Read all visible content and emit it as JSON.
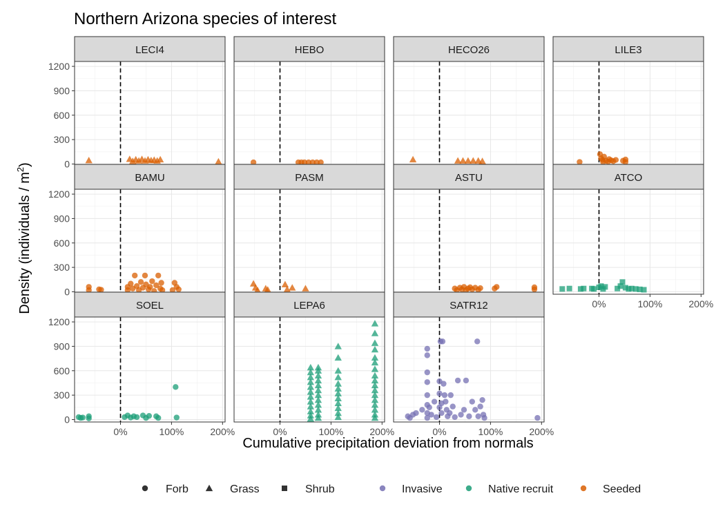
{
  "chart_data": {
    "type": "scatter",
    "title": "Northern Arizona species of interest",
    "xlabel": "Cumulative precipitation deviation from normals",
    "ylabel": "Density (individuals / m",
    "ylabel_sup": "2",
    "ylabel_close": ")",
    "xlim": [
      -0.9,
      2.05
    ],
    "ylim": [
      -30,
      1260
    ],
    "x_ticks": [
      0,
      1,
      2
    ],
    "x_tick_labels": [
      "0%",
      "100%",
      "200%"
    ],
    "y_ticks": [
      0,
      300,
      600,
      900,
      1200
    ],
    "y_tick_labels": [
      "0",
      "300",
      "600",
      "900",
      "1200"
    ],
    "vline_x": 0,
    "grid": true,
    "facet_layout": {
      "rows": 3,
      "cols": 4
    },
    "colors": {
      "Invasive": "#7570b3",
      "Native recruit": "#1b9e77",
      "Seeded": "#d95f02"
    },
    "legend": {
      "position": "bottom",
      "shape_items": [
        {
          "label": "Forb",
          "shape": "circle"
        },
        {
          "label": "Grass",
          "shape": "triangle"
        },
        {
          "label": "Shrub",
          "shape": "square"
        }
      ],
      "color_items": [
        {
          "label": "Invasive",
          "color": "#7570b3"
        },
        {
          "label": "Native recruit",
          "color": "#1b9e77"
        },
        {
          "label": "Seeded",
          "color": "#d95f02"
        }
      ]
    },
    "panels": [
      {
        "name": "LECI4",
        "group": "Seeded",
        "shape": "triangle",
        "points": [
          [
            -0.62,
            45
          ],
          [
            0.18,
            60
          ],
          [
            0.24,
            35
          ],
          [
            0.3,
            55
          ],
          [
            0.36,
            40
          ],
          [
            0.42,
            60
          ],
          [
            0.48,
            40
          ],
          [
            0.54,
            55
          ],
          [
            0.6,
            45
          ],
          [
            0.66,
            50
          ],
          [
            0.72,
            40
          ],
          [
            0.78,
            55
          ],
          [
            1.92,
            30
          ]
        ]
      },
      {
        "name": "HEBO",
        "group": "Seeded",
        "shape": "circle",
        "points": [
          [
            -0.52,
            20
          ],
          [
            0.36,
            20
          ],
          [
            0.42,
            20
          ],
          [
            0.48,
            20
          ],
          [
            0.56,
            20
          ],
          [
            0.64,
            20
          ],
          [
            0.72,
            20
          ],
          [
            0.8,
            20
          ]
        ]
      },
      {
        "name": "HECO26",
        "group": "Seeded",
        "shape": "triangle",
        "points": [
          [
            -0.52,
            55
          ],
          [
            0.36,
            40
          ],
          [
            0.46,
            40
          ],
          [
            0.56,
            40
          ],
          [
            0.66,
            40
          ],
          [
            0.76,
            40
          ],
          [
            0.84,
            35
          ]
        ]
      },
      {
        "name": "LILE3",
        "group": "Seeded",
        "shape": "circle",
        "points": [
          [
            -0.38,
            25
          ],
          [
            0.02,
            120
          ],
          [
            0.04,
            70
          ],
          [
            0.07,
            50
          ],
          [
            0.1,
            90
          ],
          [
            0.14,
            40
          ],
          [
            0.18,
            30
          ],
          [
            0.2,
            60
          ],
          [
            0.24,
            45
          ],
          [
            0.28,
            35
          ],
          [
            0.33,
            50
          ],
          [
            0.47,
            40
          ],
          [
            0.52,
            55
          ],
          [
            0.52,
            25
          ],
          [
            0.08,
            25
          ]
        ]
      },
      {
        "name": "BAMU",
        "group": "Seeded",
        "shape": "circle",
        "points": [
          [
            -0.62,
            60
          ],
          [
            -0.62,
            20
          ],
          [
            -0.42,
            30
          ],
          [
            -0.38,
            25
          ],
          [
            0.14,
            20
          ],
          [
            0.14,
            60
          ],
          [
            0.2,
            100
          ],
          [
            0.24,
            40
          ],
          [
            0.28,
            200
          ],
          [
            0.32,
            70
          ],
          [
            0.36,
            20
          ],
          [
            0.4,
            120
          ],
          [
            0.44,
            50
          ],
          [
            0.48,
            200
          ],
          [
            0.5,
            90
          ],
          [
            0.55,
            30
          ],
          [
            0.58,
            60
          ],
          [
            0.62,
            130
          ],
          [
            0.66,
            10
          ],
          [
            0.7,
            80
          ],
          [
            0.74,
            200
          ],
          [
            0.78,
            40
          ],
          [
            0.8,
            110
          ],
          [
            0.82,
            20
          ],
          [
            1.02,
            20
          ],
          [
            1.06,
            110
          ],
          [
            1.1,
            60
          ],
          [
            1.14,
            30
          ]
        ]
      },
      {
        "name": "PASM",
        "group": "Seeded",
        "shape": "triangle",
        "points": [
          [
            -0.52,
            100
          ],
          [
            -0.48,
            50
          ],
          [
            -0.44,
            20
          ],
          [
            -0.28,
            40
          ],
          [
            -0.24,
            25
          ],
          [
            0.1,
            90
          ],
          [
            0.14,
            30
          ],
          [
            0.24,
            50
          ],
          [
            0.5,
            40
          ]
        ]
      },
      {
        "name": "ASTU",
        "group": "Seeded",
        "shape": "circle",
        "points": [
          [
            0.3,
            40
          ],
          [
            0.34,
            20
          ],
          [
            0.4,
            50
          ],
          [
            0.44,
            30
          ],
          [
            0.48,
            60
          ],
          [
            0.52,
            20
          ],
          [
            0.56,
            40
          ],
          [
            0.6,
            55
          ],
          [
            0.64,
            30
          ],
          [
            0.7,
            50
          ],
          [
            0.76,
            25
          ],
          [
            0.8,
            45
          ],
          [
            1.08,
            40
          ],
          [
            1.12,
            60
          ],
          [
            1.86,
            30
          ],
          [
            1.86,
            55
          ]
        ]
      },
      {
        "name": "ATCO",
        "group": "Native recruit",
        "shape": "square",
        "points": [
          [
            -0.72,
            35
          ],
          [
            -0.58,
            40
          ],
          [
            -0.36,
            35
          ],
          [
            -0.3,
            40
          ],
          [
            -0.14,
            40
          ],
          [
            -0.1,
            35
          ],
          [
            0.0,
            55
          ],
          [
            0.04,
            70
          ],
          [
            0.08,
            35
          ],
          [
            0.12,
            60
          ],
          [
            0.36,
            40
          ],
          [
            0.42,
            70
          ],
          [
            0.46,
            120
          ],
          [
            0.52,
            50
          ],
          [
            0.58,
            35
          ],
          [
            0.64,
            40
          ],
          [
            0.72,
            35
          ],
          [
            0.8,
            30
          ],
          [
            0.88,
            25
          ]
        ]
      },
      {
        "name": "SOEL",
        "group": "Native recruit",
        "shape": "circle",
        "points": [
          [
            -0.82,
            30
          ],
          [
            -0.78,
            20
          ],
          [
            -0.74,
            25
          ],
          [
            -0.62,
            40
          ],
          [
            -0.62,
            15
          ],
          [
            0.08,
            30
          ],
          [
            0.14,
            50
          ],
          [
            0.2,
            25
          ],
          [
            0.26,
            40
          ],
          [
            0.32,
            30
          ],
          [
            0.44,
            50
          ],
          [
            0.5,
            20
          ],
          [
            0.56,
            45
          ],
          [
            0.7,
            40
          ],
          [
            0.74,
            20
          ],
          [
            1.08,
            400
          ],
          [
            1.1,
            25
          ]
        ]
      },
      {
        "name": "LEPA6",
        "group": "Native recruit",
        "shape": "triangle",
        "points": [
          [
            0.6,
            640
          ],
          [
            0.6,
            580
          ],
          [
            0.6,
            520
          ],
          [
            0.6,
            460
          ],
          [
            0.6,
            400
          ],
          [
            0.6,
            340
          ],
          [
            0.6,
            280
          ],
          [
            0.6,
            220
          ],
          [
            0.6,
            160
          ],
          [
            0.6,
            100
          ],
          [
            0.6,
            50
          ],
          [
            0.6,
            10
          ],
          [
            0.75,
            640
          ],
          [
            0.75,
            600
          ],
          [
            0.75,
            540
          ],
          [
            0.75,
            480
          ],
          [
            0.75,
            420
          ],
          [
            0.75,
            360
          ],
          [
            0.75,
            300
          ],
          [
            0.75,
            240
          ],
          [
            0.75,
            180
          ],
          [
            0.75,
            120
          ],
          [
            0.75,
            60
          ],
          [
            0.75,
            20
          ],
          [
            1.14,
            900
          ],
          [
            1.14,
            760
          ],
          [
            1.14,
            600
          ],
          [
            1.14,
            520
          ],
          [
            1.14,
            440
          ],
          [
            1.14,
            380
          ],
          [
            1.14,
            320
          ],
          [
            1.14,
            260
          ],
          [
            1.14,
            200
          ],
          [
            1.14,
            140
          ],
          [
            1.14,
            80
          ],
          [
            1.14,
            30
          ],
          [
            1.86,
            1180
          ],
          [
            1.86,
            1060
          ],
          [
            1.86,
            940
          ],
          [
            1.86,
            860
          ],
          [
            1.86,
            760
          ],
          [
            1.86,
            700
          ],
          [
            1.86,
            620
          ],
          [
            1.86,
            540
          ],
          [
            1.86,
            480
          ],
          [
            1.86,
            420
          ],
          [
            1.86,
            360
          ],
          [
            1.86,
            300
          ],
          [
            1.86,
            240
          ],
          [
            1.86,
            180
          ],
          [
            1.86,
            120
          ],
          [
            1.86,
            60
          ],
          [
            1.86,
            20
          ]
        ]
      },
      {
        "name": "SATR12",
        "group": "Invasive",
        "shape": "circle",
        "points": [
          [
            -0.62,
            40
          ],
          [
            -0.58,
            20
          ],
          [
            -0.52,
            60
          ],
          [
            -0.46,
            80
          ],
          [
            -0.34,
            120
          ],
          [
            -0.24,
            870
          ],
          [
            -0.24,
            790
          ],
          [
            -0.24,
            580
          ],
          [
            -0.24,
            460
          ],
          [
            -0.24,
            300
          ],
          [
            -0.24,
            180
          ],
          [
            -0.24,
            80
          ],
          [
            -0.24,
            20
          ],
          [
            -0.2,
            150
          ],
          [
            -0.16,
            60
          ],
          [
            -0.1,
            220
          ],
          [
            -0.06,
            30
          ],
          [
            0.0,
            470
          ],
          [
            0.0,
            320
          ],
          [
            0.0,
            150
          ],
          [
            0.02,
            960
          ],
          [
            0.04,
            80
          ],
          [
            0.06,
            960
          ],
          [
            0.08,
            440
          ],
          [
            0.1,
            300
          ],
          [
            0.12,
            220
          ],
          [
            0.14,
            120
          ],
          [
            0.16,
            40
          ],
          [
            0.2,
            80
          ],
          [
            0.26,
            160
          ],
          [
            0.3,
            30
          ],
          [
            0.36,
            480
          ],
          [
            0.42,
            60
          ],
          [
            0.48,
            120
          ],
          [
            0.52,
            480
          ],
          [
            0.58,
            40
          ],
          [
            0.64,
            220
          ],
          [
            0.7,
            120
          ],
          [
            0.74,
            960
          ],
          [
            0.76,
            40
          ],
          [
            0.8,
            160
          ],
          [
            0.84,
            240
          ],
          [
            0.86,
            60
          ],
          [
            0.88,
            20
          ],
          [
            1.92,
            20
          ],
          [
            0.22,
            300
          ],
          [
            0.04,
            200
          ]
        ]
      }
    ]
  }
}
